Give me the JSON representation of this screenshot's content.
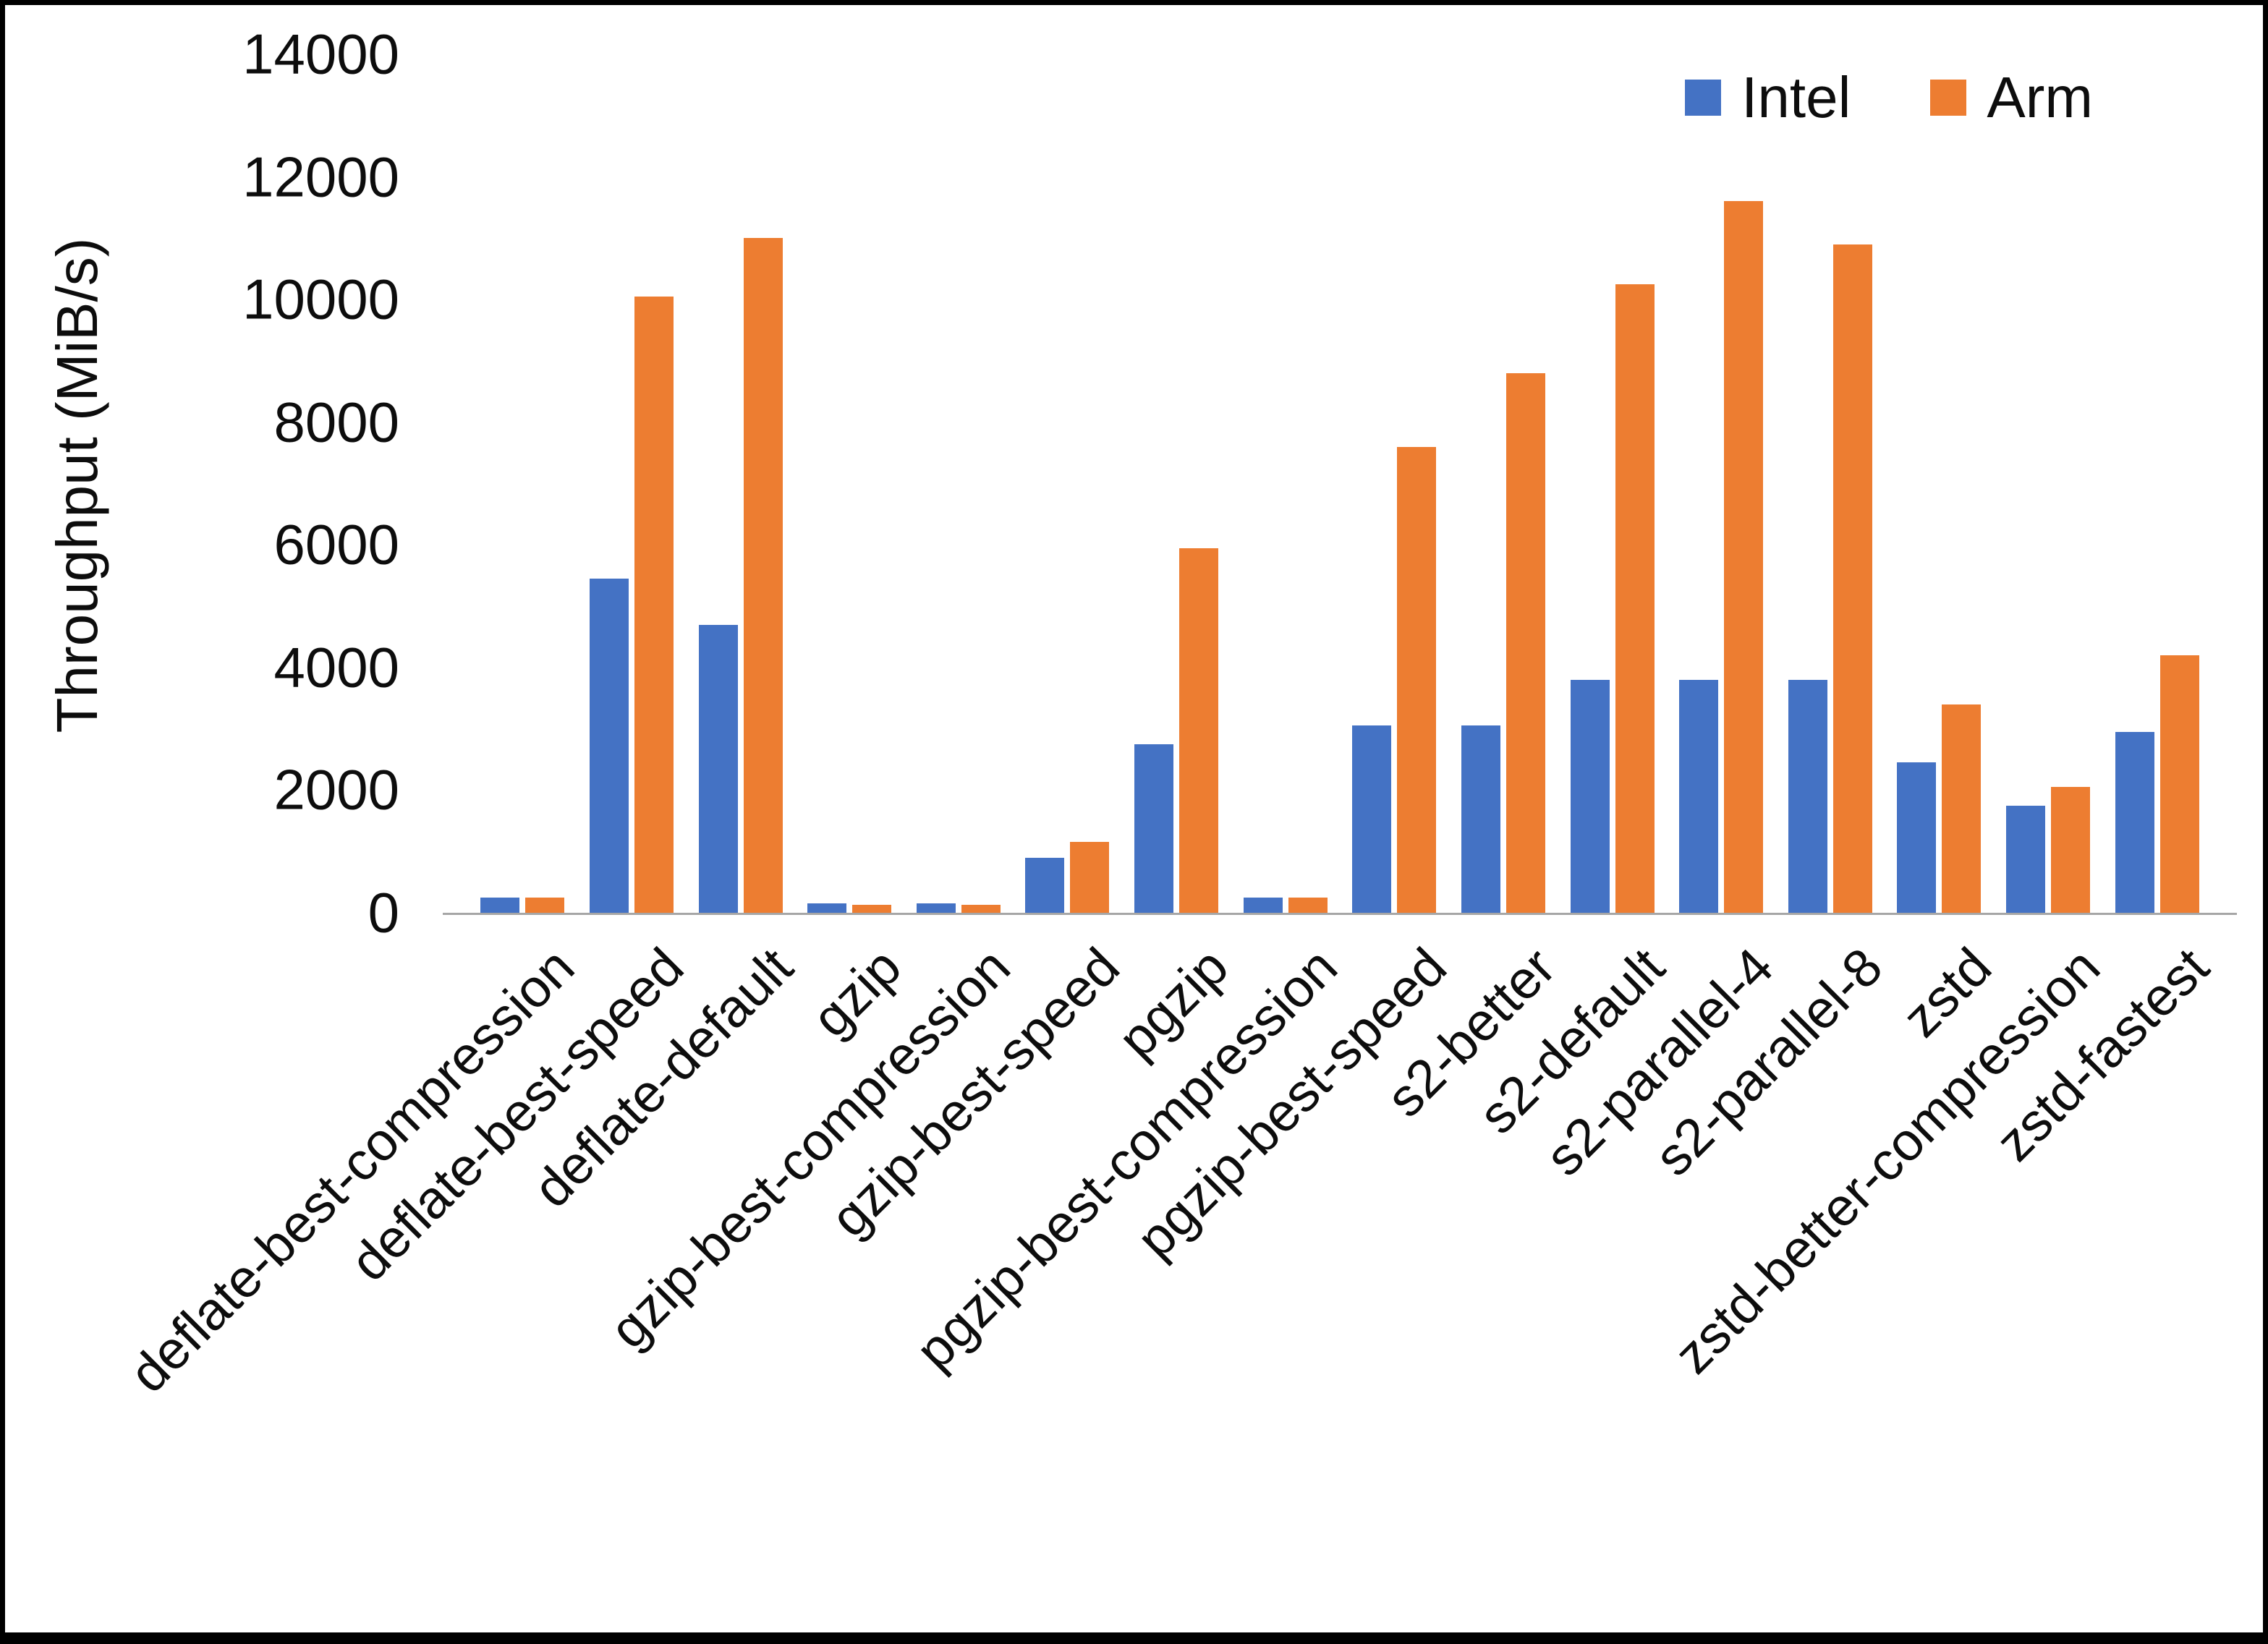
{
  "figure": {
    "background": "#ffffff",
    "border_color": "#000000"
  },
  "legend": {
    "position": "top-right"
  },
  "chart_data": {
    "type": "bar",
    "title": "",
    "xlabel": "",
    "ylabel": "Throughput (MiB/s)",
    "ylim": [
      0,
      14000
    ],
    "ytick_step": 2000,
    "yticks": [
      0,
      2000,
      4000,
      6000,
      8000,
      10000,
      12000,
      14000
    ],
    "grid": false,
    "legend_position": "top-right",
    "categories": [
      "deflate-best-compression",
      "deflate-best-speed",
      "deflate-default",
      "gzip",
      "gzip-best-compression",
      "gzip-best-speed",
      "pgzip",
      "pgzip-best-compression",
      "pgzip-best-speed",
      "s2-better",
      "s2-default",
      "s2-parallel-4",
      "s2-parallel-8",
      "zstd",
      "zstd-better-compression",
      "zstd-fastest"
    ],
    "series": [
      {
        "name": "Intel",
        "color": "#4472C4",
        "values": [
          250,
          5450,
          4700,
          150,
          150,
          900,
          2750,
          250,
          3050,
          3050,
          3800,
          3800,
          3800,
          2450,
          1750,
          2950
        ]
      },
      {
        "name": "Arm",
        "color": "#ED7D31",
        "values": [
          250,
          10050,
          11000,
          130,
          130,
          1150,
          5950,
          250,
          7600,
          8800,
          10250,
          11600,
          10900,
          3400,
          2050,
          4200
        ]
      }
    ]
  }
}
